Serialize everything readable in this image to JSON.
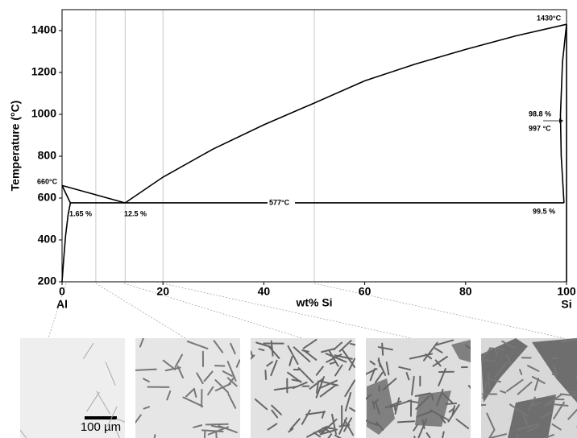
{
  "chart_data": {
    "type": "line",
    "ylabel": "Temperature (°C)",
    "xlabel": "wt% Si",
    "x_end_labels": [
      "Al",
      "Si"
    ],
    "xlim": [
      0,
      100
    ],
    "ylim": [
      200,
      1500
    ],
    "xticks": [
      0,
      20,
      40,
      60,
      80,
      100
    ],
    "yticks": [
      200,
      400,
      600,
      800,
      1000,
      1200,
      1400
    ],
    "reference_x": [
      6.7,
      12.5,
      20,
      50
    ],
    "series": [
      {
        "color": "#000000",
        "x": [
          0,
          12.5
        ],
        "values": [
          660,
          577
        ]
      },
      {
        "color": "#000000",
        "x": [
          12.5,
          20,
          30,
          40,
          50,
          60,
          70,
          80,
          90,
          100
        ],
        "values": [
          577,
          700,
          835,
          950,
          1054,
          1160,
          1240,
          1310,
          1375,
          1430
        ]
      },
      {
        "color": "#000000",
        "x": [
          0,
          1.65
        ],
        "values": [
          660,
          577
        ]
      },
      {
        "color": "#000000",
        "x": [
          1.65,
          1.2,
          0.7,
          0.3,
          0
        ],
        "values": [
          577,
          520,
          420,
          300,
          200
        ]
      },
      {
        "color": "#000000",
        "x": [
          1.65,
          99.5
        ],
        "values": [
          577,
          577
        ]
      },
      {
        "color": "#000000",
        "x": [
          99.5,
          98.95,
          98.8,
          99.2,
          100
        ],
        "values": [
          577,
          800,
          997,
          1250,
          1430
        ]
      },
      {
        "color": "#000000",
        "x": [
          100,
          100
        ],
        "values": [
          1430,
          200
        ]
      }
    ],
    "annotations": [
      "660°C",
      "1.65 %",
      "12.5 %",
      "577°C",
      "1430°C",
      "98.8 %",
      "997 °C",
      "99.5 %"
    ]
  },
  "micrographs": {
    "scale_bar": "100 µm"
  }
}
